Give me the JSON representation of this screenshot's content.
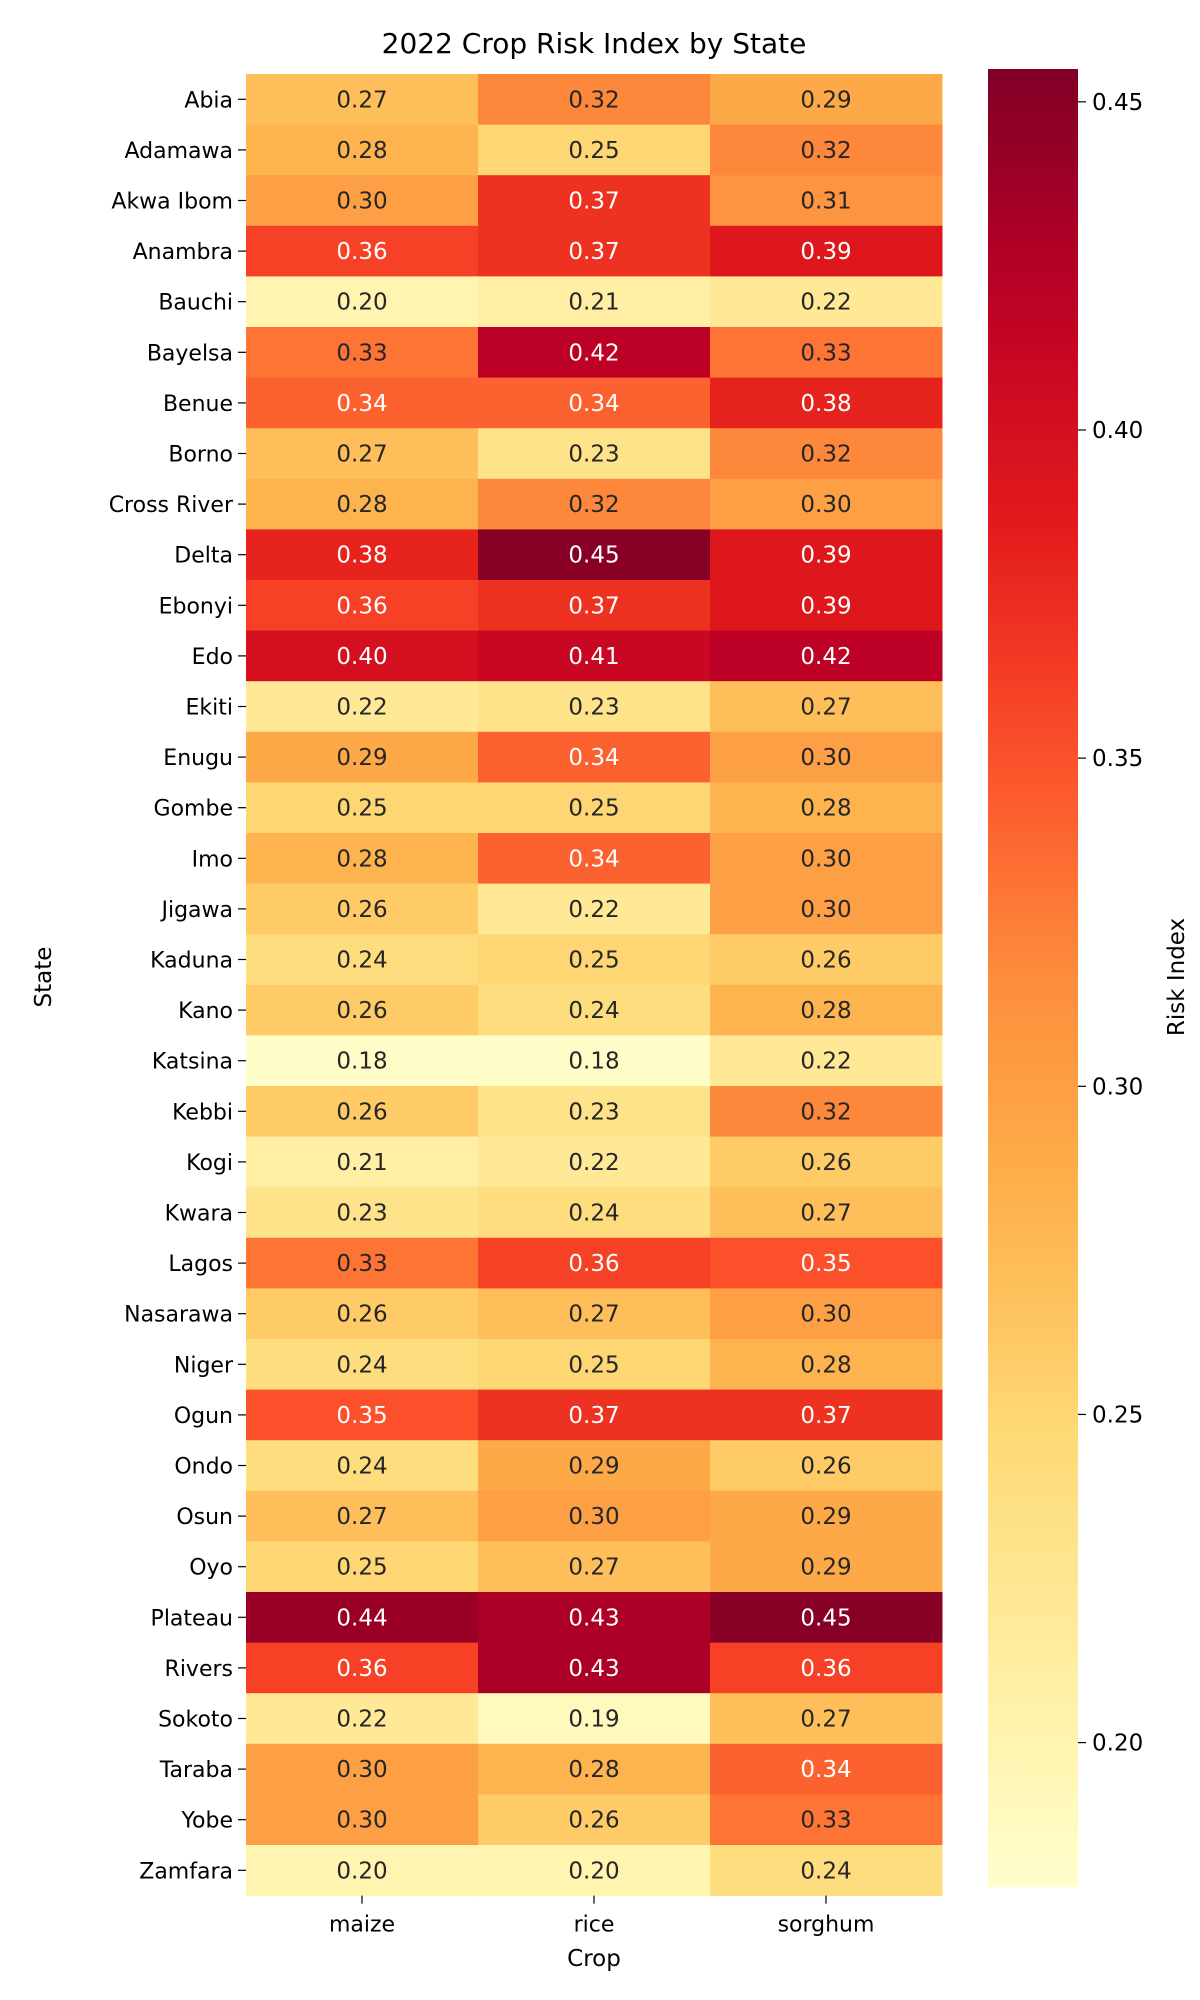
{
  "chart_data": {
    "type": "heatmap",
    "title": "2022 Crop Risk Index by State",
    "xlabel": "Crop",
    "ylabel": "State",
    "colorbar_label": "Risk Index",
    "colormap": "YlOrRd",
    "vmin": 0.178,
    "vmax": 0.455,
    "colorbar_ticks": [
      "0.20",
      "0.25",
      "0.30",
      "0.35",
      "0.40",
      "0.45"
    ],
    "columns": [
      "maize",
      "rice",
      "sorghum"
    ],
    "rows": [
      "Abia",
      "Adamawa",
      "Akwa Ibom",
      "Anambra",
      "Bauchi",
      "Bayelsa",
      "Benue",
      "Borno",
      "Cross River",
      "Delta",
      "Ebonyi",
      "Edo",
      "Ekiti",
      "Enugu",
      "Gombe",
      "Imo",
      "Jigawa",
      "Kaduna",
      "Kano",
      "Katsina",
      "Kebbi",
      "Kogi",
      "Kwara",
      "Lagos",
      "Nasarawa",
      "Niger",
      "Ogun",
      "Ondo",
      "Osun",
      "Oyo",
      "Plateau",
      "Rivers",
      "Sokoto",
      "Taraba",
      "Yobe",
      "Zamfara"
    ],
    "values": [
      [
        0.27,
        0.32,
        0.29
      ],
      [
        0.28,
        0.25,
        0.32
      ],
      [
        0.3,
        0.37,
        0.31
      ],
      [
        0.36,
        0.37,
        0.39
      ],
      [
        0.2,
        0.21,
        0.22
      ],
      [
        0.33,
        0.42,
        0.33
      ],
      [
        0.34,
        0.34,
        0.38
      ],
      [
        0.27,
        0.23,
        0.32
      ],
      [
        0.28,
        0.32,
        0.3
      ],
      [
        0.38,
        0.45,
        0.39
      ],
      [
        0.36,
        0.37,
        0.39
      ],
      [
        0.4,
        0.41,
        0.42
      ],
      [
        0.22,
        0.23,
        0.27
      ],
      [
        0.29,
        0.34,
        0.3
      ],
      [
        0.25,
        0.25,
        0.28
      ],
      [
        0.28,
        0.34,
        0.3
      ],
      [
        0.26,
        0.22,
        0.3
      ],
      [
        0.24,
        0.25,
        0.26
      ],
      [
        0.26,
        0.24,
        0.28
      ],
      [
        0.18,
        0.18,
        0.22
      ],
      [
        0.26,
        0.23,
        0.32
      ],
      [
        0.21,
        0.22,
        0.26
      ],
      [
        0.23,
        0.24,
        0.27
      ],
      [
        0.33,
        0.36,
        0.35
      ],
      [
        0.26,
        0.27,
        0.3
      ],
      [
        0.24,
        0.25,
        0.28
      ],
      [
        0.35,
        0.37,
        0.37
      ],
      [
        0.24,
        0.29,
        0.26
      ],
      [
        0.27,
        0.3,
        0.29
      ],
      [
        0.25,
        0.27,
        0.29
      ],
      [
        0.44,
        0.43,
        0.45
      ],
      [
        0.36,
        0.43,
        0.36
      ],
      [
        0.22,
        0.19,
        0.27
      ],
      [
        0.3,
        0.28,
        0.34
      ],
      [
        0.3,
        0.26,
        0.33
      ],
      [
        0.2,
        0.2,
        0.24
      ]
    ]
  }
}
